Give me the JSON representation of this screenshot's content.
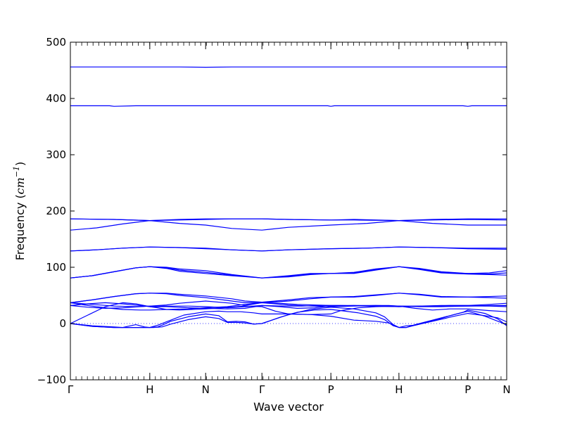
{
  "chart_data": {
    "type": "line",
    "title": "",
    "xlabel": "Wave vector",
    "ylabel_text": "Frequency (",
    "ylabel_unit": "cm",
    "ylabel_exp": "−1",
    "ylabel_close": ")",
    "ylim": [
      -100,
      500
    ],
    "yticks": [
      -100,
      0,
      100,
      200,
      300,
      400,
      500
    ],
    "ytick_labels": [
      "−100",
      "0",
      "100",
      "200",
      "300",
      "400",
      "500"
    ],
    "xlim": [
      0,
      1
    ],
    "high_symmetry_points": [
      {
        "label": "Γ",
        "x": 0.0
      },
      {
        "label": "H",
        "x": 0.182
      },
      {
        "label": "N",
        "x": 0.31
      },
      {
        "label": "Γ",
        "x": 0.439
      },
      {
        "label": "P",
        "x": 0.597
      },
      {
        "label": "H",
        "x": 0.753
      },
      {
        "label": "P",
        "x": 0.911
      },
      {
        "label": "N",
        "x": 1.0
      }
    ],
    "zero_line": 0,
    "series_color": "#0000ff",
    "zero_line_color": "#0000ff",
    "series": [
      {
        "x": [
          0,
          0.05,
          0.1,
          0.15,
          0.182,
          0.25,
          0.31,
          0.37,
          0.439,
          0.5,
          0.597,
          0.65,
          0.753,
          0.83,
          0.911,
          1.0
        ],
        "y": [
          456,
          456,
          456,
          456,
          456,
          456,
          455.5,
          456,
          456,
          456,
          456,
          456,
          456,
          456,
          456,
          456
        ]
      },
      {
        "x": [
          0,
          0.05,
          0.09,
          0.1,
          0.15,
          0.182,
          0.25,
          0.31,
          0.37,
          0.439,
          0.59,
          0.597,
          0.605,
          0.753,
          0.9,
          0.911,
          0.92,
          1.0
        ],
        "y": [
          387,
          387,
          387,
          386,
          387,
          387,
          387,
          387,
          387,
          387,
          387,
          386,
          387,
          387,
          387,
          386,
          387,
          387
        ]
      },
      {
        "x": [
          0,
          0.1,
          0.182,
          0.25,
          0.31,
          0.37,
          0.439,
          0.5,
          0.597,
          0.65,
          0.753,
          0.83,
          0.911,
          1.0
        ],
        "y": [
          186,
          185,
          183,
          185,
          186,
          186,
          186,
          185,
          184,
          185,
          183,
          185,
          186,
          186
        ]
      },
      {
        "x": [
          0,
          0.1,
          0.182,
          0.25,
          0.31,
          0.37,
          0.439,
          0.5,
          0.597,
          0.65,
          0.753,
          0.83,
          0.911,
          1.0
        ],
        "y": [
          186,
          185,
          183,
          184,
          185,
          186,
          186,
          185,
          184,
          184,
          183,
          184,
          185,
          184
        ]
      },
      {
        "x": [
          0,
          0.06,
          0.12,
          0.182,
          0.25,
          0.31,
          0.37,
          0.439,
          0.5,
          0.597,
          0.68,
          0.753,
          0.83,
          0.911,
          1.0
        ],
        "y": [
          166,
          170,
          177,
          183,
          178,
          175,
          169,
          166,
          171,
          175,
          178,
          183,
          178,
          175,
          175
        ]
      },
      {
        "x": [
          0,
          0.06,
          0.12,
          0.182,
          0.25,
          0.31,
          0.37,
          0.439,
          0.5,
          0.597,
          0.68,
          0.753,
          0.83,
          0.911,
          1.0
        ],
        "y": [
          129,
          131,
          134,
          136,
          135,
          134,
          131,
          129,
          131,
          133,
          134,
          136,
          135,
          134,
          134
        ]
      },
      {
        "x": [
          0,
          0.06,
          0.12,
          0.182,
          0.25,
          0.31,
          0.37,
          0.439,
          0.5,
          0.597,
          0.68,
          0.753,
          0.83,
          0.911,
          1.0
        ],
        "y": [
          129,
          131,
          134,
          136,
          135,
          133,
          131,
          129,
          131,
          133,
          134,
          136,
          135,
          133,
          132
        ]
      },
      {
        "x": [
          0,
          0.05,
          0.1,
          0.15,
          0.182,
          0.22,
          0.25,
          0.31,
          0.37,
          0.439,
          0.5,
          0.55,
          0.597,
          0.65,
          0.7,
          0.753,
          0.8,
          0.85,
          0.911,
          0.96,
          1.0
        ],
        "y": [
          81,
          85,
          92,
          99,
          101,
          100,
          97,
          94,
          87,
          81,
          85,
          89,
          89,
          91,
          97,
          101,
          98,
          92,
          89,
          90,
          94
        ]
      },
      {
        "x": [
          0,
          0.05,
          0.1,
          0.15,
          0.182,
          0.22,
          0.25,
          0.31,
          0.37,
          0.439,
          0.5,
          0.55,
          0.597,
          0.65,
          0.7,
          0.753,
          0.8,
          0.85,
          0.911,
          0.96,
          1.0
        ],
        "y": [
          81,
          85,
          92,
          99,
          101,
          99,
          95,
          91,
          86,
          81,
          84,
          88,
          89,
          90,
          96,
          101,
          97,
          91,
          89,
          88,
          90
        ]
      },
      {
        "x": [
          0,
          0.05,
          0.1,
          0.15,
          0.182,
          0.22,
          0.25,
          0.31,
          0.37,
          0.439,
          0.5,
          0.55,
          0.597,
          0.65,
          0.7,
          0.753,
          0.8,
          0.85,
          0.911,
          0.96,
          1.0
        ],
        "y": [
          81,
          85,
          92,
          99,
          101,
          98,
          93,
          89,
          85,
          81,
          83,
          87,
          89,
          89,
          95,
          101,
          96,
          90,
          88,
          87,
          86
        ]
      },
      {
        "x": [
          0,
          0.05,
          0.1,
          0.15,
          0.182,
          0.22,
          0.25,
          0.31,
          0.37,
          0.4,
          0.439,
          0.5,
          0.55,
          0.597,
          0.65,
          0.7,
          0.753,
          0.8,
          0.85,
          0.911,
          0.96,
          1.0
        ],
        "y": [
          37,
          42,
          48,
          53,
          54,
          54,
          52,
          49,
          44,
          40,
          38,
          42,
          46,
          47,
          48,
          51,
          54,
          52,
          48,
          47,
          48,
          49
        ]
      },
      {
        "x": [
          0,
          0.05,
          0.1,
          0.15,
          0.182,
          0.22,
          0.25,
          0.31,
          0.37,
          0.4,
          0.439,
          0.5,
          0.55,
          0.597,
          0.65,
          0.7,
          0.753,
          0.8,
          0.85,
          0.911,
          0.96,
          1.0
        ],
        "y": [
          37,
          42,
          48,
          53,
          54,
          53,
          50,
          46,
          40,
          37,
          37,
          40,
          44,
          47,
          47,
          50,
          54,
          51,
          47,
          47,
          46,
          45
        ]
      },
      {
        "x": [
          0,
          0.05,
          0.1,
          0.15,
          0.182,
          0.22,
          0.25,
          0.31,
          0.37,
          0.4,
          0.439,
          0.48,
          0.52,
          0.56,
          0.597,
          0.65,
          0.7,
          0.753,
          0.8,
          0.85,
          0.911,
          0.96,
          1.0
        ],
        "y": [
          37,
          34,
          31,
          30,
          31,
          33,
          36,
          40,
          36,
          32,
          37,
          36,
          34,
          33,
          32,
          32,
          31,
          30,
          31,
          32,
          32,
          34,
          36
        ]
      },
      {
        "x": [
          0,
          0.04,
          0.08,
          0.12,
          0.16,
          0.182,
          0.22,
          0.27,
          0.31,
          0.36,
          0.4,
          0.439,
          0.49,
          0.53,
          0.58,
          0.62,
          0.68,
          0.753,
          0.82,
          0.87,
          0.911,
          0.96,
          1.0
        ],
        "y": [
          32,
          29,
          27,
          28,
          30,
          31,
          31,
          31,
          30,
          28,
          30,
          32,
          31,
          31,
          32,
          32,
          31,
          30,
          31,
          32,
          32,
          31,
          30
        ]
      },
      {
        "x": [
          0,
          0.04,
          0.08,
          0.12,
          0.16,
          0.182,
          0.22,
          0.27,
          0.31,
          0.36,
          0.4,
          0.439,
          0.48,
          0.52,
          0.56,
          0.597,
          0.65,
          0.7,
          0.753,
          0.8,
          0.85,
          0.911,
          0.96,
          1.0
        ],
        "y": [
          32,
          35,
          37,
          35,
          32,
          30,
          30,
          28,
          27,
          26,
          27,
          32,
          30,
          27,
          28,
          31,
          32,
          32,
          31,
          30,
          30,
          31,
          32,
          32
        ]
      },
      {
        "x": [
          0,
          0.04,
          0.08,
          0.12,
          0.16,
          0.182,
          0.22,
          0.27,
          0.31,
          0.36,
          0.4,
          0.439,
          0.47,
          0.5,
          0.55,
          0.597,
          0.65,
          0.7,
          0.73,
          0.753,
          0.78,
          0.83,
          0.88,
          0.911,
          0.95,
          1.0
        ],
        "y": [
          37,
          32,
          28,
          25,
          24,
          24,
          25,
          26,
          28,
          30,
          34,
          37,
          35,
          33,
          31,
          30,
          31,
          32,
          32,
          31,
          31,
          31,
          31,
          31,
          31,
          32
        ]
      },
      {
        "x": [
          0,
          0.04,
          0.08,
          0.12,
          0.15,
          0.182,
          0.2,
          0.22,
          0.25,
          0.31,
          0.35,
          0.4,
          0.439,
          0.47,
          0.5,
          0.55,
          0.597,
          0.62,
          0.66,
          0.7,
          0.753,
          0.79,
          0.83,
          0.87,
          0.911,
          0.96,
          1.0
        ],
        "y": [
          0,
          15,
          30,
          37,
          35,
          30,
          28,
          25,
          24,
          26,
          28,
          31,
          30,
          22,
          17,
          16,
          17,
          23,
          28,
          30,
          31,
          27,
          24,
          26,
          26,
          23,
          21
        ]
      },
      {
        "x": [
          0,
          0.05,
          0.1,
          0.15,
          0.17,
          0.182,
          0.2,
          0.21,
          0.23,
          0.27,
          0.31,
          0.34,
          0.36,
          0.38,
          0.4,
          0.42,
          0.439,
          0.5,
          0.55,
          0.597,
          0.65,
          0.7,
          0.72,
          0.74,
          0.753,
          0.77,
          0.79,
          0.85,
          0.9,
          0.911,
          0.95,
          0.98,
          1.0
        ],
        "y": [
          0,
          -5,
          -7,
          -7,
          -7,
          -7,
          -6,
          -3,
          4,
          12,
          17,
          14,
          3,
          4,
          3,
          -1,
          0,
          16,
          25,
          29,
          26,
          19,
          12,
          -2,
          -7,
          -7,
          -2,
          10,
          20,
          24,
          18,
          8,
          -4
        ]
      },
      {
        "x": [
          0,
          0.05,
          0.1,
          0.15,
          0.17,
          0.182,
          0.19,
          0.21,
          0.23,
          0.27,
          0.31,
          0.34,
          0.36,
          0.38,
          0.4,
          0.42,
          0.439,
          0.48,
          0.52,
          0.56,
          0.597,
          0.62,
          0.66,
          0.7,
          0.72,
          0.74,
          0.753,
          0.77,
          0.79,
          0.84,
          0.88,
          0.911,
          0.95,
          0.98,
          1.0
        ],
        "y": [
          0,
          -5,
          -7,
          -7,
          -7,
          -7,
          -7,
          -6,
          -1,
          7,
          12,
          9,
          2,
          2,
          1,
          -1,
          0,
          11,
          20,
          24,
          25,
          23,
          19,
          13,
          7,
          -4,
          -7,
          -7,
          -3,
          7,
          16,
          22,
          13,
          4,
          -2
        ]
      },
      {
        "x": [
          0,
          0.05,
          0.1,
          0.12,
          0.15,
          0.17,
          0.182,
          0.2,
          0.22,
          0.26,
          0.31,
          0.34,
          0.36,
          0.39,
          0.42,
          0.439,
          0.5,
          0.55,
          0.597,
          0.65,
          0.7,
          0.73,
          0.753,
          0.77,
          0.79,
          0.83,
          0.88,
          0.911,
          0.95,
          0.98,
          1.0
        ],
        "y": [
          0,
          -4,
          -6,
          -7,
          -2,
          -6,
          -7,
          -3,
          3,
          15,
          21,
          22,
          21,
          21,
          19,
          17,
          17,
          16,
          13,
          6,
          4,
          1,
          -7,
          -4,
          -3,
          4,
          13,
          18,
          14,
          10,
          3
        ]
      }
    ]
  }
}
